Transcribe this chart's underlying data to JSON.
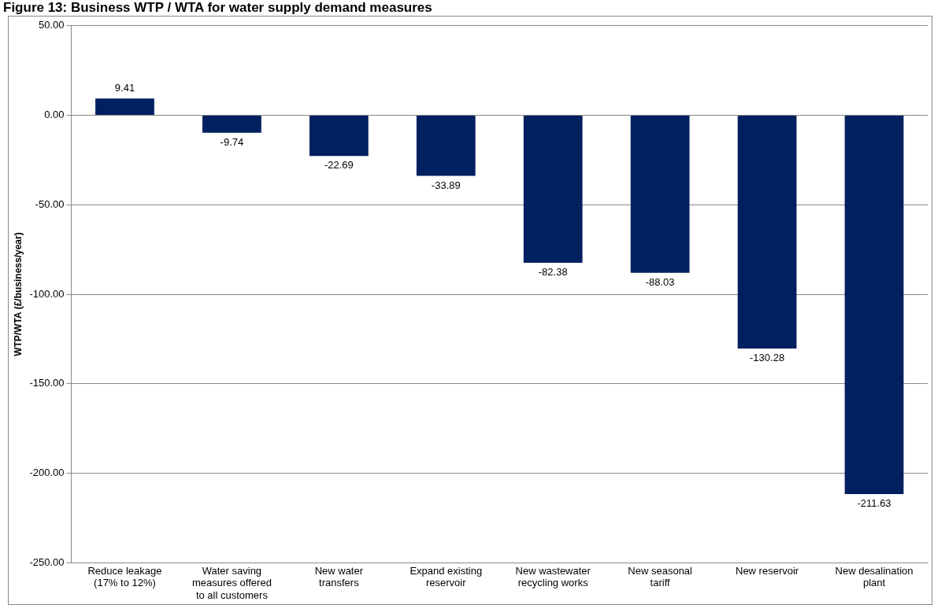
{
  "chart_data": {
    "type": "bar",
    "title": "Figure 13: Business WTP / WTA for water supply demand measures",
    "ylabel": "WTP/WTA (£/business/year)",
    "categories": [
      "Reduce leakage (17% to 12%)",
      "Water saving measures offered to all customers",
      "New water transfers",
      "Expand existing reservoir",
      "New wastewater recycling works",
      "New seasonal tariff",
      "New reservoir",
      "New desalination plant"
    ],
    "values": [
      9.41,
      -9.74,
      -22.69,
      -33.89,
      -82.38,
      -88.03,
      -130.28,
      -211.63
    ],
    "color": "#002060",
    "data_labels": true,
    "ylim": [
      -250,
      50
    ],
    "yticks": [
      {
        "value": -250,
        "label": "-250.00"
      },
      {
        "value": -200,
        "label": "-200.00"
      },
      {
        "value": -150,
        "label": "-150.00"
      },
      {
        "value": -100,
        "label": "-100.00"
      },
      {
        "value": -50,
        "label": "-50.00"
      },
      {
        "value": 0,
        "label": "0.00"
      },
      {
        "value": 50,
        "label": "50.00"
      }
    ],
    "grid": "y",
    "legend": false
  }
}
